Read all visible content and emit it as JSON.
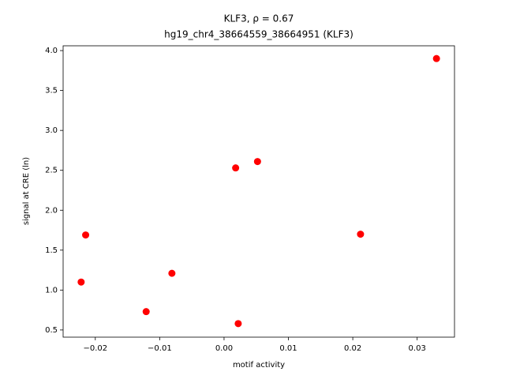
{
  "chart_data": {
    "type": "scatter",
    "title": "KLF3, ρ = 0.67",
    "subtitle": "hg19_chr4_38664559_38664951 (KLF3)",
    "x_label": "motif activity",
    "y_label": "signal at CRE (ln)",
    "color": "#ff0000",
    "x": [
      -0.0222,
      -0.0215,
      -0.0121,
      -0.0081,
      0.0018,
      0.0022,
      0.0052,
      0.0212,
      0.033
    ],
    "values": [
      1.1,
      1.69,
      0.73,
      1.21,
      2.53,
      0.58,
      2.61,
      1.7,
      3.9
    ],
    "xlim": [
      -0.025,
      0.0358
    ],
    "ylim": [
      0.41,
      4.06
    ],
    "xticks": [
      {
        "value": -0.02,
        "label": "−0.02"
      },
      {
        "value": -0.01,
        "label": "−0.01"
      },
      {
        "value": 0,
        "label": "0.00"
      },
      {
        "value": 0.01,
        "label": "0.01"
      },
      {
        "value": 0.02,
        "label": "0.02"
      },
      {
        "value": 0.03,
        "label": "0.03"
      }
    ],
    "yticks": [
      0.5,
      {
        "value": 1,
        "label": "1.0"
      },
      1.5,
      {
        "value": 2,
        "label": "2.0"
      },
      2.5,
      {
        "value": 3,
        "label": "3.0"
      },
      3.5,
      {
        "value": 4,
        "label": "4.0"
      }
    ],
    "grid": false
  }
}
